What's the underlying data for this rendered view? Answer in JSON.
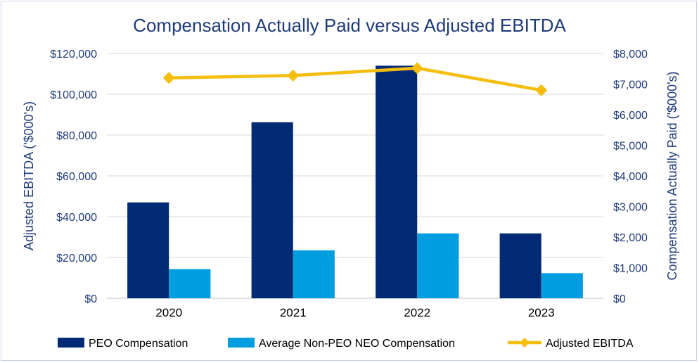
{
  "chart_data": {
    "type": "bar",
    "title": "Compensation Actually Paid versus Adjusted EBITDA",
    "categories": [
      "2020",
      "2021",
      "2022",
      "2023"
    ],
    "series": [
      {
        "name": "PEO Compensation",
        "kind": "bar",
        "axis": "left",
        "color": "#002a74",
        "values": [
          47000,
          86300,
          114000,
          31800
        ]
      },
      {
        "name": "Average Non-PEO NEO Compensation",
        "kind": "bar",
        "axis": "left",
        "color": "#009ee0",
        "values": [
          14300,
          23500,
          31800,
          12300
        ]
      },
      {
        "name": "Adjusted EBITDA",
        "kind": "line",
        "axis": "right",
        "color": "#f5be0f",
        "marker": "diamond",
        "values": [
          7200,
          7280,
          7520,
          6800
        ]
      }
    ],
    "left_axis": {
      "label": "Adjusted EBITDA ('$000's)",
      "ylim": [
        0,
        120000
      ],
      "ticks": [
        "$0",
        "$20,000",
        "$40,000",
        "$60,000",
        "$80,000",
        "$100,000",
        "$120,000"
      ]
    },
    "right_axis": {
      "label": "Compensation Actually Paid ('$000's)",
      "ylim": [
        0,
        8000
      ],
      "ticks": [
        "$0",
        "$1,000",
        "$2,000",
        "$3,000",
        "$4,000",
        "$5,000",
        "$6,000",
        "$7,000",
        "$8,000"
      ]
    },
    "gridlines": true,
    "legend_position": "bottom",
    "colors": {
      "text": "#1f3b7a",
      "title": "#1f3b7a",
      "grid": "#d9d9d9",
      "axis": "#bfbfbf"
    }
  }
}
